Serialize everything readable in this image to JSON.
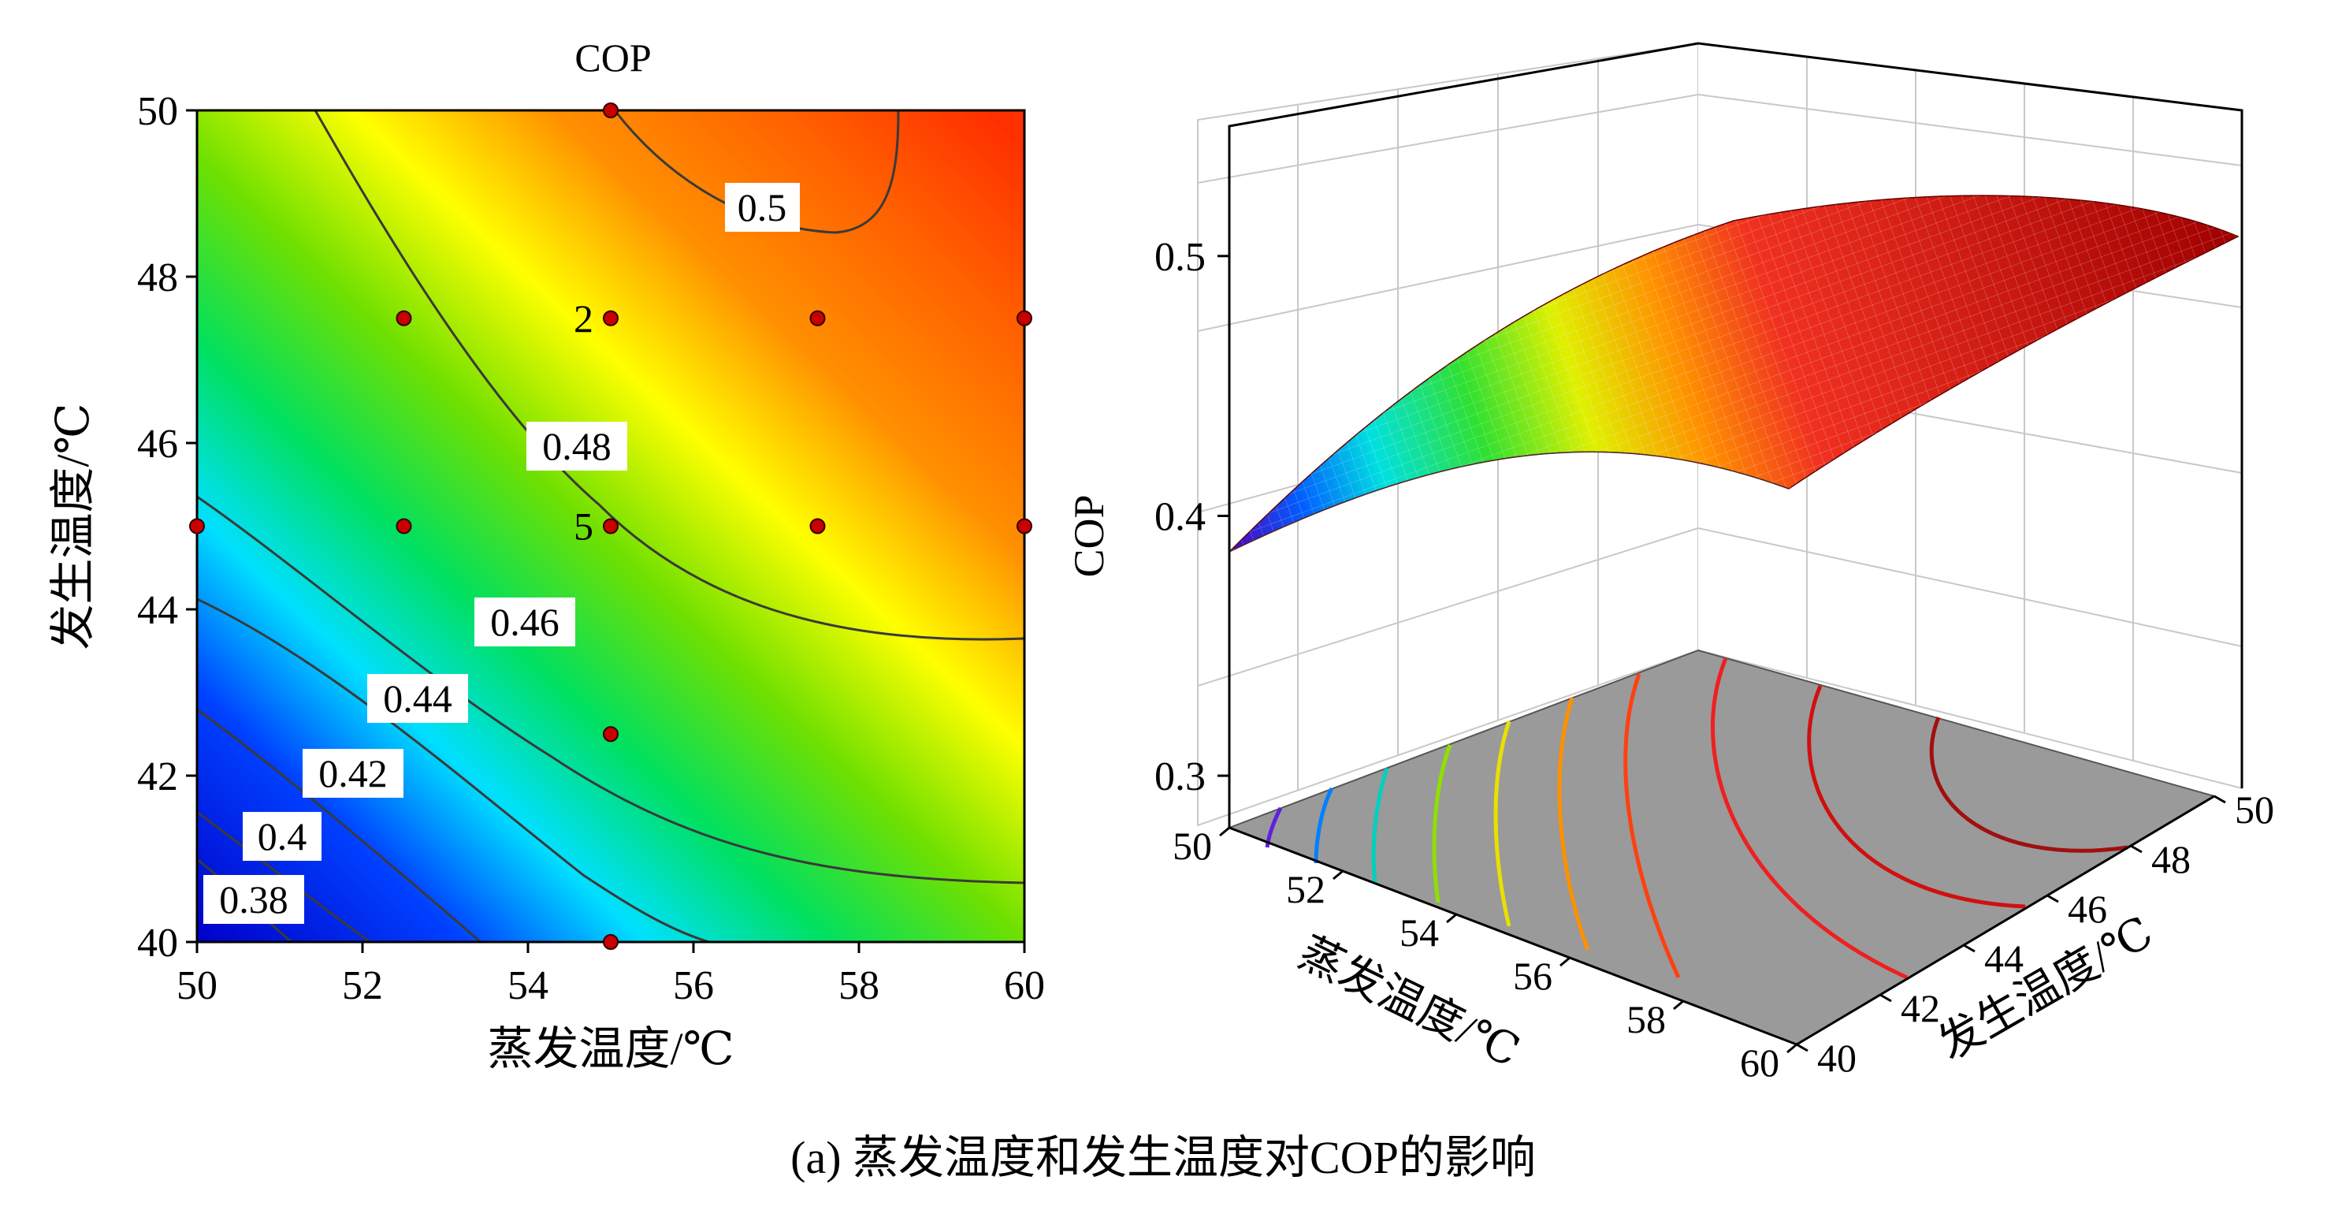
{
  "caption": "(a) 蒸发温度和发生温度对COP的影响",
  "chart_data": [
    {
      "type": "contour",
      "title": "COP",
      "xlabel": "蒸发温度/℃",
      "ylabel": "发生温度/℃",
      "xlim": [
        50,
        60
      ],
      "ylim": [
        40,
        50
      ],
      "xticks": [
        "50",
        "52",
        "54",
        "56",
        "58",
        "60"
      ],
      "yticks": [
        "40",
        "42",
        "44",
        "46",
        "48",
        "50"
      ],
      "contour_levels": [
        "0.38",
        "0.4",
        "0.42",
        "0.44",
        "0.46",
        "0.48",
        "0.5"
      ],
      "colors": {
        "low": "#0000e0",
        "mid": "#00e000",
        "high": "#ff3000"
      },
      "design_points": [
        {
          "x": 55,
          "y": 50
        },
        {
          "x": 52.5,
          "y": 47.5
        },
        {
          "x": 55,
          "y": 47.5
        },
        {
          "x": 57.5,
          "y": 47.5
        },
        {
          "x": 60,
          "y": 47.5
        },
        {
          "x": 50,
          "y": 45
        },
        {
          "x": 52.5,
          "y": 45
        },
        {
          "x": 55,
          "y": 45
        },
        {
          "x": 57.5,
          "y": 45
        },
        {
          "x": 60,
          "y": 45
        },
        {
          "x": 55,
          "y": 42.5
        },
        {
          "x": 55,
          "y": 40
        }
      ],
      "point_labels": [
        {
          "text": "2",
          "x": 55,
          "y": 47.5
        },
        {
          "text": "5",
          "x": 55,
          "y": 45
        }
      ]
    },
    {
      "type": "surface",
      "zlabel": "COP",
      "xlabel": "蒸发温度/℃",
      "ylabel": "发生温度/℃",
      "xticks": [
        "50",
        "52",
        "54",
        "56",
        "58",
        "60"
      ],
      "yticks": [
        "40",
        "42",
        "44",
        "46",
        "48",
        "50"
      ],
      "zticks": [
        "0.3",
        "0.4",
        "0.5"
      ],
      "zlim": [
        0.28,
        0.55
      ],
      "floor_color": "#9a9a9a"
    }
  ]
}
